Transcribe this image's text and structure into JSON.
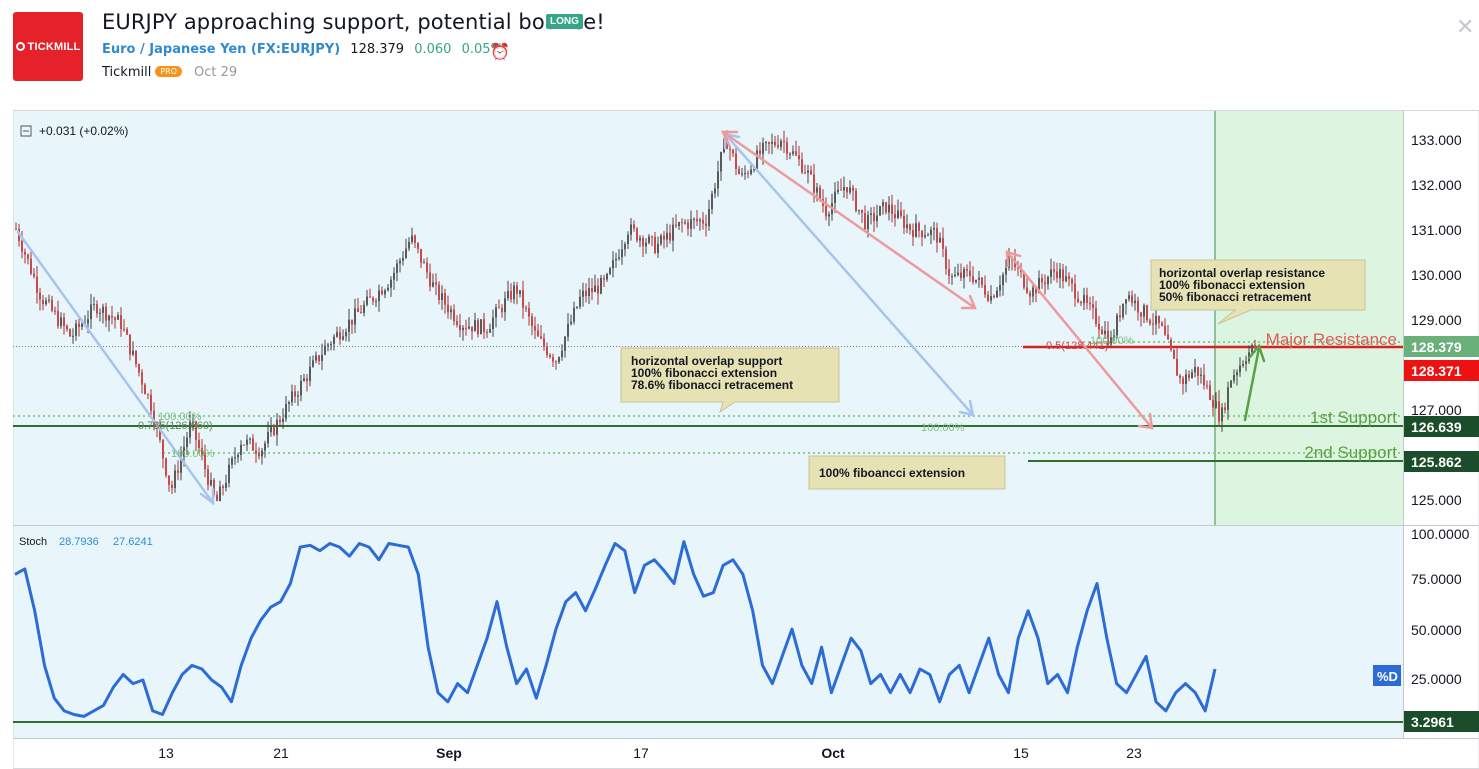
{
  "header": {
    "logo_text": "TICKMILL",
    "title": "EURJPY approaching support, potential bounce!",
    "badge": "LONG",
    "symbol_name": "Euro / Japanese Yen (FX:EURJPY)",
    "price": "128.379",
    "change": "0.060",
    "change_pct": "0.05%",
    "author": "Tickmill",
    "author_badge": "PRO",
    "date": "Oct 29"
  },
  "chart_data": {
    "type": "candlestick",
    "indicator_top": "+0.031 (+0.02%)",
    "x_tick_labels": [
      "13",
      "21",
      "Sep",
      "17",
      "Oct",
      "15",
      "23"
    ],
    "price_axis": {
      "ticks": [
        "133.000",
        "132.000",
        "131.000",
        "130.000",
        "129.000",
        "127.000",
        "125.000"
      ],
      "range": [
        124.5,
        133.5
      ],
      "current_price": "128.379",
      "level_red": "128.371",
      "level_support1": "126.639",
      "level_support2": "125.862"
    },
    "levels": {
      "major_resistance": {
        "label": "Major Resistance",
        "value": 128.371
      },
      "support1": {
        "label": "1st Support",
        "value": 126.639
      },
      "support2": {
        "label": "2nd Support",
        "value": 125.862
      }
    },
    "fib_labels": {
      "fib_100a": "100.00%",
      "fib_786": "0.786(126.660)",
      "fib_100b": "100.00%",
      "fib_100c": "100.00%",
      "fib_05": "0.5(128.441)",
      "fib_100d": "100.00%"
    },
    "price_anchors": [
      {
        "t": 0,
        "p": 131.0
      },
      {
        "t": 25,
        "p": 129.5
      },
      {
        "t": 55,
        "p": 128.6
      },
      {
        "t": 80,
        "p": 129.3
      },
      {
        "t": 105,
        "p": 128.9
      },
      {
        "t": 135,
        "p": 127.1
      },
      {
        "t": 155,
        "p": 125.2
      },
      {
        "t": 175,
        "p": 126.7
      },
      {
        "t": 200,
        "p": 124.9
      },
      {
        "t": 225,
        "p": 126.3
      },
      {
        "t": 245,
        "p": 126.1
      },
      {
        "t": 275,
        "p": 127.2
      },
      {
        "t": 310,
        "p": 128.4
      },
      {
        "t": 345,
        "p": 129.2
      },
      {
        "t": 375,
        "p": 129.9
      },
      {
        "t": 395,
        "p": 130.8
      },
      {
        "t": 420,
        "p": 129.6
      },
      {
        "t": 445,
        "p": 128.9
      },
      {
        "t": 470,
        "p": 128.8
      },
      {
        "t": 500,
        "p": 129.7
      },
      {
        "t": 520,
        "p": 128.6
      },
      {
        "t": 540,
        "p": 128.1
      },
      {
        "t": 565,
        "p": 129.5
      },
      {
        "t": 590,
        "p": 129.8
      },
      {
        "t": 612,
        "p": 131.0
      },
      {
        "t": 640,
        "p": 130.6
      },
      {
        "t": 665,
        "p": 131.1
      },
      {
        "t": 690,
        "p": 131.2
      },
      {
        "t": 710,
        "p": 133.0
      },
      {
        "t": 725,
        "p": 132.1
      },
      {
        "t": 745,
        "p": 132.7
      },
      {
        "t": 765,
        "p": 133.0
      },
      {
        "t": 790,
        "p": 132.3
      },
      {
        "t": 810,
        "p": 131.4
      },
      {
        "t": 830,
        "p": 132.0
      },
      {
        "t": 850,
        "p": 131.1
      },
      {
        "t": 870,
        "p": 131.5
      },
      {
        "t": 895,
        "p": 131.0
      },
      {
        "t": 920,
        "p": 130.9
      },
      {
        "t": 935,
        "p": 129.9
      },
      {
        "t": 955,
        "p": 130.0
      },
      {
        "t": 975,
        "p": 129.5
      },
      {
        "t": 995,
        "p": 130.3
      },
      {
        "t": 1015,
        "p": 129.6
      },
      {
        "t": 1040,
        "p": 130.1
      },
      {
        "t": 1060,
        "p": 129.6
      },
      {
        "t": 1080,
        "p": 129.0
      },
      {
        "t": 1095,
        "p": 128.5
      },
      {
        "t": 1110,
        "p": 129.6
      },
      {
        "t": 1125,
        "p": 129.2
      },
      {
        "t": 1145,
        "p": 128.8
      },
      {
        "t": 1165,
        "p": 127.6
      },
      {
        "t": 1180,
        "p": 127.9
      },
      {
        "t": 1195,
        "p": 127.3
      },
      {
        "t": 1205,
        "p": 126.8
      },
      {
        "t": 1215,
        "p": 127.7
      },
      {
        "t": 1230,
        "p": 128.2
      },
      {
        "t": 1240,
        "p": 128.4
      }
    ],
    "annotations": {
      "note_resistance": [
        "horizontal overlap resistance",
        "100% fibonacci extension",
        "50% fibonacci retracement"
      ],
      "note_support": [
        "horizontal overlap support",
        "100% fibonacci extension",
        "78.6% fibonacci retracement"
      ],
      "note_support2": "100% fiboancci extension"
    },
    "stoch": {
      "label": "Stoch",
      "k": "28.7936",
      "d": "27.6241",
      "d_tag": "%D",
      "current": "3.2961",
      "range": [
        0,
        100
      ],
      "ticks": [
        "100.0000",
        "75.0000",
        "50.0000",
        "25.0000"
      ],
      "values": [
        80,
        83,
        60,
        30,
        12,
        5,
        3,
        2,
        5,
        8,
        18,
        25,
        20,
        22,
        5,
        3,
        15,
        25,
        30,
        28,
        22,
        18,
        10,
        30,
        45,
        55,
        62,
        65,
        75,
        95,
        96,
        93,
        97,
        95,
        90,
        97,
        95,
        88,
        97,
        96,
        95,
        80,
        40,
        15,
        10,
        20,
        15,
        30,
        45,
        65,
        40,
        20,
        28,
        12,
        30,
        50,
        65,
        70,
        60,
        72,
        85,
        97,
        93,
        70,
        85,
        88,
        82,
        75,
        98,
        80,
        68,
        70,
        85,
        88,
        80,
        60,
        30,
        20,
        35,
        50,
        30,
        20,
        40,
        15,
        30,
        45,
        38,
        20,
        25,
        15,
        25,
        15,
        28,
        25,
        10,
        25,
        30,
        15,
        30,
        45,
        25,
        15,
        45,
        60,
        45,
        20,
        25,
        15,
        40,
        60,
        75,
        45,
        20,
        15,
        25,
        35,
        10,
        5,
        15,
        20,
        15,
        5,
        28
      ]
    }
  }
}
